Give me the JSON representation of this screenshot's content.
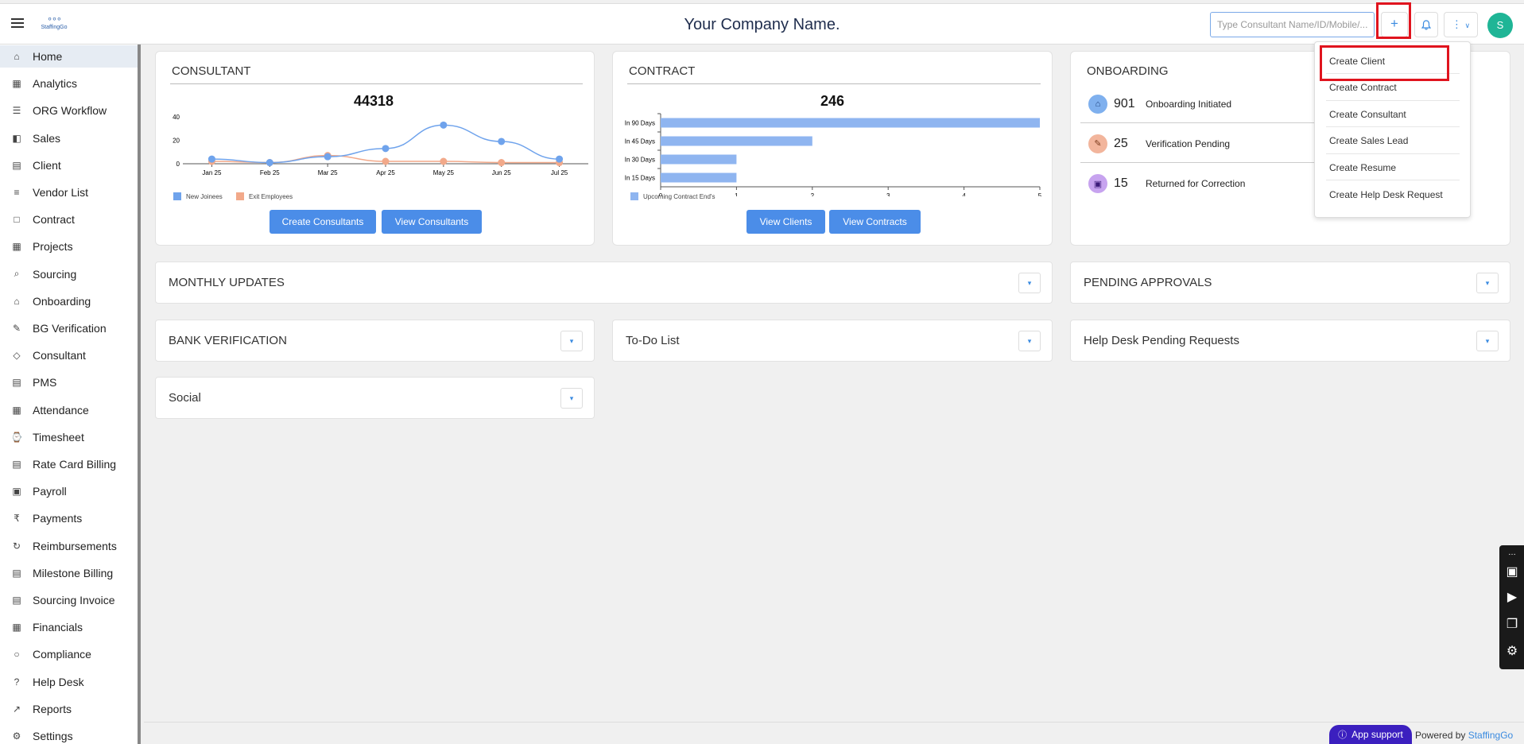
{
  "header": {
    "logo_text": "StaffingGo",
    "company_name": "Your Company Name.",
    "search_placeholder": "Type Consultant Name/ID/Mobile/...",
    "plus_label": "+",
    "avatar_initial": "S"
  },
  "sidebar": {
    "items": [
      {
        "label": "Home",
        "icon": "home-icon"
      },
      {
        "label": "Analytics",
        "icon": "analytics-icon"
      },
      {
        "label": "ORG Workflow",
        "icon": "workflow-icon"
      },
      {
        "label": "Sales",
        "icon": "sales-icon"
      },
      {
        "label": "Client",
        "icon": "client-icon"
      },
      {
        "label": "Vendor List",
        "icon": "vendor-icon"
      },
      {
        "label": "Contract",
        "icon": "contract-icon"
      },
      {
        "label": "Projects",
        "icon": "projects-icon"
      },
      {
        "label": "Sourcing",
        "icon": "sourcing-icon"
      },
      {
        "label": "Onboarding",
        "icon": "onboarding-icon"
      },
      {
        "label": "BG Verification",
        "icon": "verification-icon"
      },
      {
        "label": "Consultant",
        "icon": "consultant-icon"
      },
      {
        "label": "PMS",
        "icon": "pms-icon"
      },
      {
        "label": "Attendance",
        "icon": "calendar-icon"
      },
      {
        "label": "Timesheet",
        "icon": "timesheet-icon"
      },
      {
        "label": "Rate Card Billing",
        "icon": "billing-icon"
      },
      {
        "label": "Payroll",
        "icon": "payroll-icon"
      },
      {
        "label": "Payments",
        "icon": "rupee-icon"
      },
      {
        "label": "Reimbursements",
        "icon": "reimbursement-icon"
      },
      {
        "label": "Milestone Billing",
        "icon": "milestone-icon"
      },
      {
        "label": "Sourcing Invoice",
        "icon": "invoice-icon"
      },
      {
        "label": "Financials",
        "icon": "financials-icon"
      },
      {
        "label": "Compliance",
        "icon": "compliance-icon"
      },
      {
        "label": "Help Desk",
        "icon": "help-icon"
      },
      {
        "label": "Reports",
        "icon": "reports-icon"
      },
      {
        "label": "Settings",
        "icon": "gear-icon"
      }
    ]
  },
  "consultant_card": {
    "title": "CONSULTANT",
    "total": "44318",
    "btn_create": "Create Consultants",
    "btn_view": "View Consultants"
  },
  "contract_card": {
    "title": "CONTRACT",
    "total": "246",
    "btn_clients": "View Clients",
    "btn_contracts": "View Contracts"
  },
  "onboarding_card": {
    "title": "ONBOARDING",
    "rows": [
      {
        "count": "901",
        "label": "Onboarding Initiated"
      },
      {
        "count": "25",
        "label": "Verification Pending"
      },
      {
        "count": "15",
        "label": "Returned for Correction"
      }
    ]
  },
  "panels": {
    "monthly_updates": "MONTHLY UPDATES",
    "pending_approvals": "PENDING APPROVALS",
    "bank_verification": "BANK VERIFICATION",
    "todo": "To-Do List",
    "helpdesk": "Help Desk Pending Requests",
    "social": "Social"
  },
  "create_menu": {
    "items": [
      "Create Client",
      "Create Contract",
      "Create Consultant",
      "Create Sales Lead",
      "Create Resume",
      "Create Help Desk Request"
    ]
  },
  "footer": {
    "app_support": "App support",
    "powered_by": "Powered by",
    "brand": "StaffingGo"
  },
  "chart_data": [
    {
      "type": "line",
      "categories": [
        "Jan 25",
        "Feb 25",
        "Mar 25",
        "Apr 25",
        "May 25",
        "Jun 25",
        "Jul 25"
      ],
      "series": [
        {
          "name": "New Joinees",
          "values": [
            4,
            1,
            6,
            13,
            33,
            19,
            4
          ],
          "color": "#6fa3ec"
        },
        {
          "name": "Exit Employees",
          "values": [
            2,
            1,
            7,
            2,
            2,
            1,
            1
          ],
          "color": "#f2a98a"
        }
      ],
      "yticks": [
        "0",
        "20",
        "40"
      ],
      "ylim": [
        0,
        40
      ]
    },
    {
      "type": "bar",
      "orientation": "horizontal",
      "categories": [
        "In 90 Days",
        "In 45 Days",
        "In 30 Days",
        "In 15 Days"
      ],
      "series": [
        {
          "name": "Upcoming Contract End's",
          "values": [
            5,
            2,
            1,
            1
          ],
          "color": "#8fb5f0"
        }
      ],
      "xticks": [
        "0",
        "1",
        "2",
        "3",
        "4",
        "5"
      ],
      "xlim": [
        0,
        5
      ]
    }
  ]
}
